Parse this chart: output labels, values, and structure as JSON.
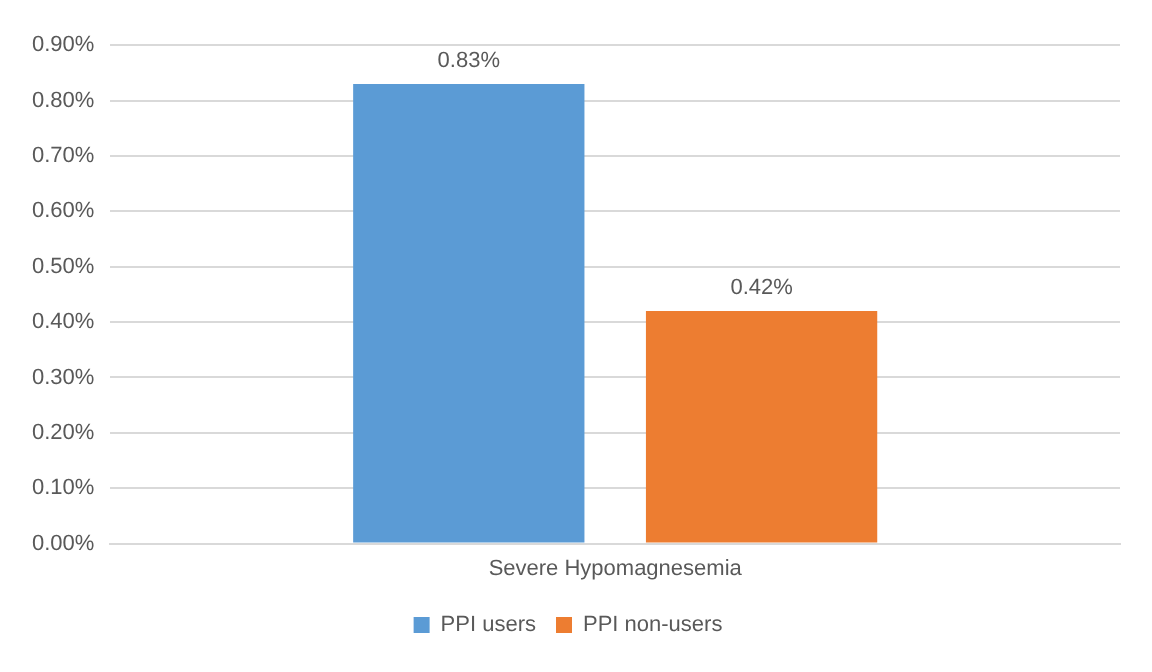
{
  "chart_data": {
    "type": "bar",
    "categories": [
      "Severe Hypomagnesemia"
    ],
    "series": [
      {
        "name": "PPI users",
        "color": "#5b9bd5",
        "values": [
          0.83
        ],
        "value_labels": [
          "0.83%"
        ]
      },
      {
        "name": "PPI non-users",
        "color": "#ed7d31",
        "values": [
          0.42
        ],
        "value_labels": [
          "0.42%"
        ]
      }
    ],
    "ylim": [
      0,
      0.9
    ],
    "yticks": [
      {
        "value": 0,
        "label": "0.00%"
      },
      {
        "value": 0.1,
        "label": "0.10%"
      },
      {
        "value": 0.2,
        "label": "0.20%"
      },
      {
        "value": 0.3,
        "label": "0.30%"
      },
      {
        "value": 0.4,
        "label": "0.40%"
      },
      {
        "value": 0.5,
        "label": "0.50%"
      },
      {
        "value": 0.6,
        "label": "0.60%"
      },
      {
        "value": 0.7,
        "label": "0.70%"
      },
      {
        "value": 0.8,
        "label": "0.80%"
      },
      {
        "value": 0.9,
        "label": "0.90%"
      }
    ],
    "grid": "y",
    "legend": "bottom"
  }
}
